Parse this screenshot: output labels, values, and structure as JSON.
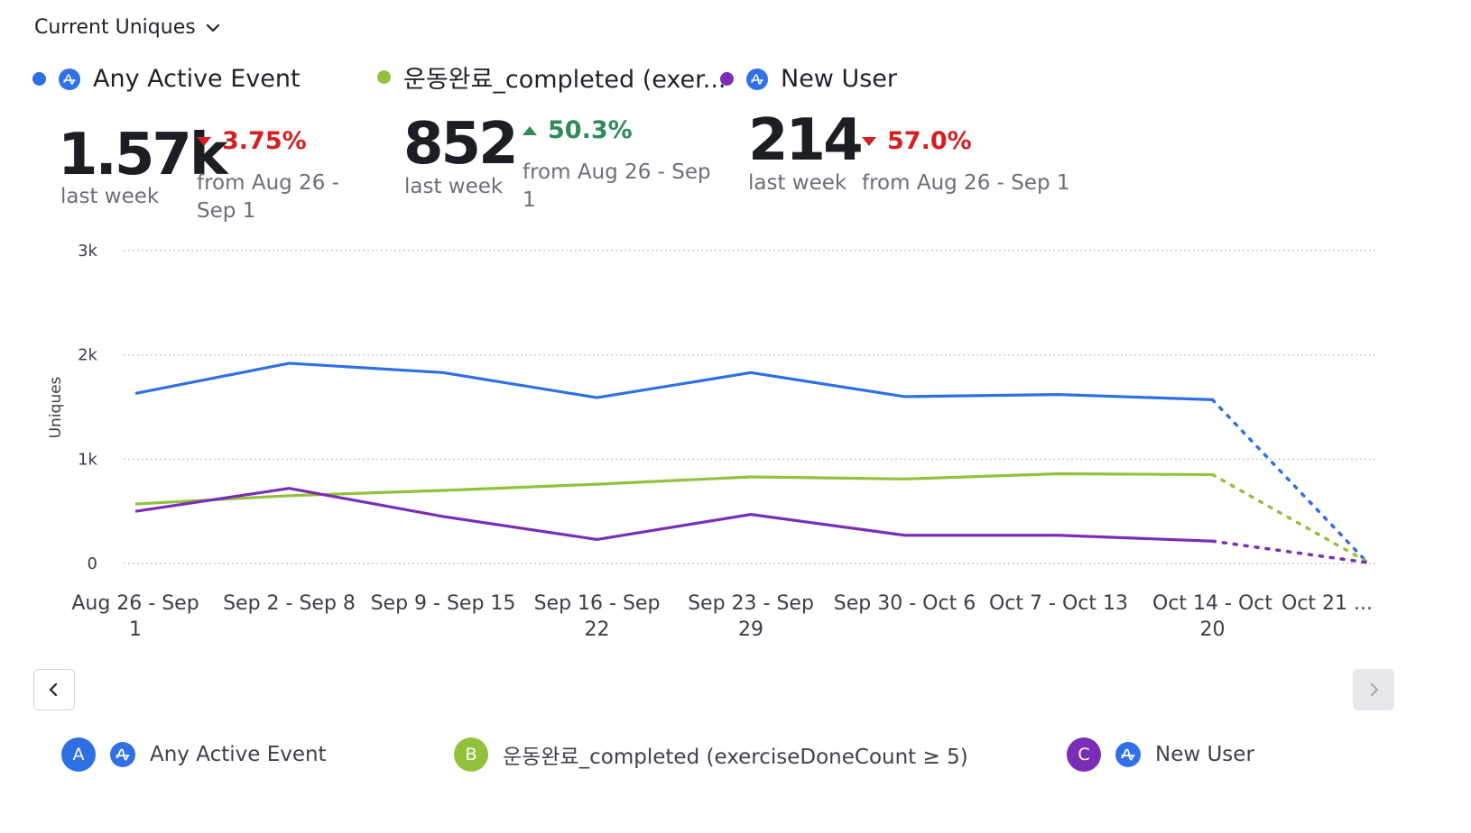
{
  "metric_selector": {
    "label": "Current Uniques"
  },
  "colors": {
    "series_a": "#2f6fe4",
    "series_b": "#92c13c",
    "series_c": "#7a2db5",
    "up": "#2e8b57",
    "down": "#d42020",
    "amp_icon_bg": "#3170e8"
  },
  "legend": [
    {
      "name": "Any Active Event",
      "icon": "amplitude-icon"
    },
    {
      "name": "운동완료_completed (exer..."
    },
    {
      "name": "New User",
      "icon": "amplitude-icon"
    }
  ],
  "summaries": [
    {
      "value": "1.57k",
      "period": "last week",
      "change": "3.75%",
      "direction": "down",
      "from_line1": "from Aug 26 -",
      "from_line2": "Sep 1"
    },
    {
      "value": "852",
      "period": "last week",
      "change": "50.3%",
      "direction": "up",
      "from_line1": "from Aug 26 - Sep",
      "from_line2": "1"
    },
    {
      "value": "214",
      "period": "last week",
      "change": "57.0%",
      "direction": "down",
      "from_line1": "from Aug 26 - Sep 1",
      "from_line2": ""
    }
  ],
  "chart_data": {
    "type": "line",
    "ylabel": "Uniques",
    "ylim": [
      0,
      3000
    ],
    "yticks": [
      0,
      1000,
      2000,
      3000
    ],
    "ytick_labels": [
      "0",
      "1k",
      "2k",
      "3k"
    ],
    "categories": [
      [
        "Aug 26 - Sep",
        "1"
      ],
      [
        "Sep 2 - Sep 8"
      ],
      [
        "Sep 9 - Sep 15"
      ],
      [
        "Sep 16 - Sep",
        "22"
      ],
      [
        "Sep 23 - Sep",
        "29"
      ],
      [
        "Sep 30 - Oct 6"
      ],
      [
        "Oct 7 - Oct 13"
      ],
      [
        "Oct 14 - Oct",
        "20"
      ],
      [
        "Oct 21 ..."
      ]
    ],
    "incomplete_last_point": true,
    "grid": true,
    "series": [
      {
        "name": "Any Active Event",
        "values": [
          1630,
          1920,
          1830,
          1590,
          1830,
          1600,
          1620,
          1570,
          20
        ]
      },
      {
        "name": "운동완료_completed (exerciseDoneCount ≥ 5)",
        "values": [
          570,
          650,
          700,
          760,
          830,
          810,
          860,
          852,
          20
        ]
      },
      {
        "name": "New User",
        "values": [
          500,
          720,
          450,
          230,
          470,
          270,
          270,
          214,
          10
        ]
      }
    ]
  },
  "bottom_legend": [
    {
      "letter": "A",
      "label": "Any Active Event"
    },
    {
      "letter": "B",
      "label": "운동완료_completed (exerciseDoneCount ≥ 5)"
    },
    {
      "letter": "C",
      "label": "New User"
    }
  ]
}
